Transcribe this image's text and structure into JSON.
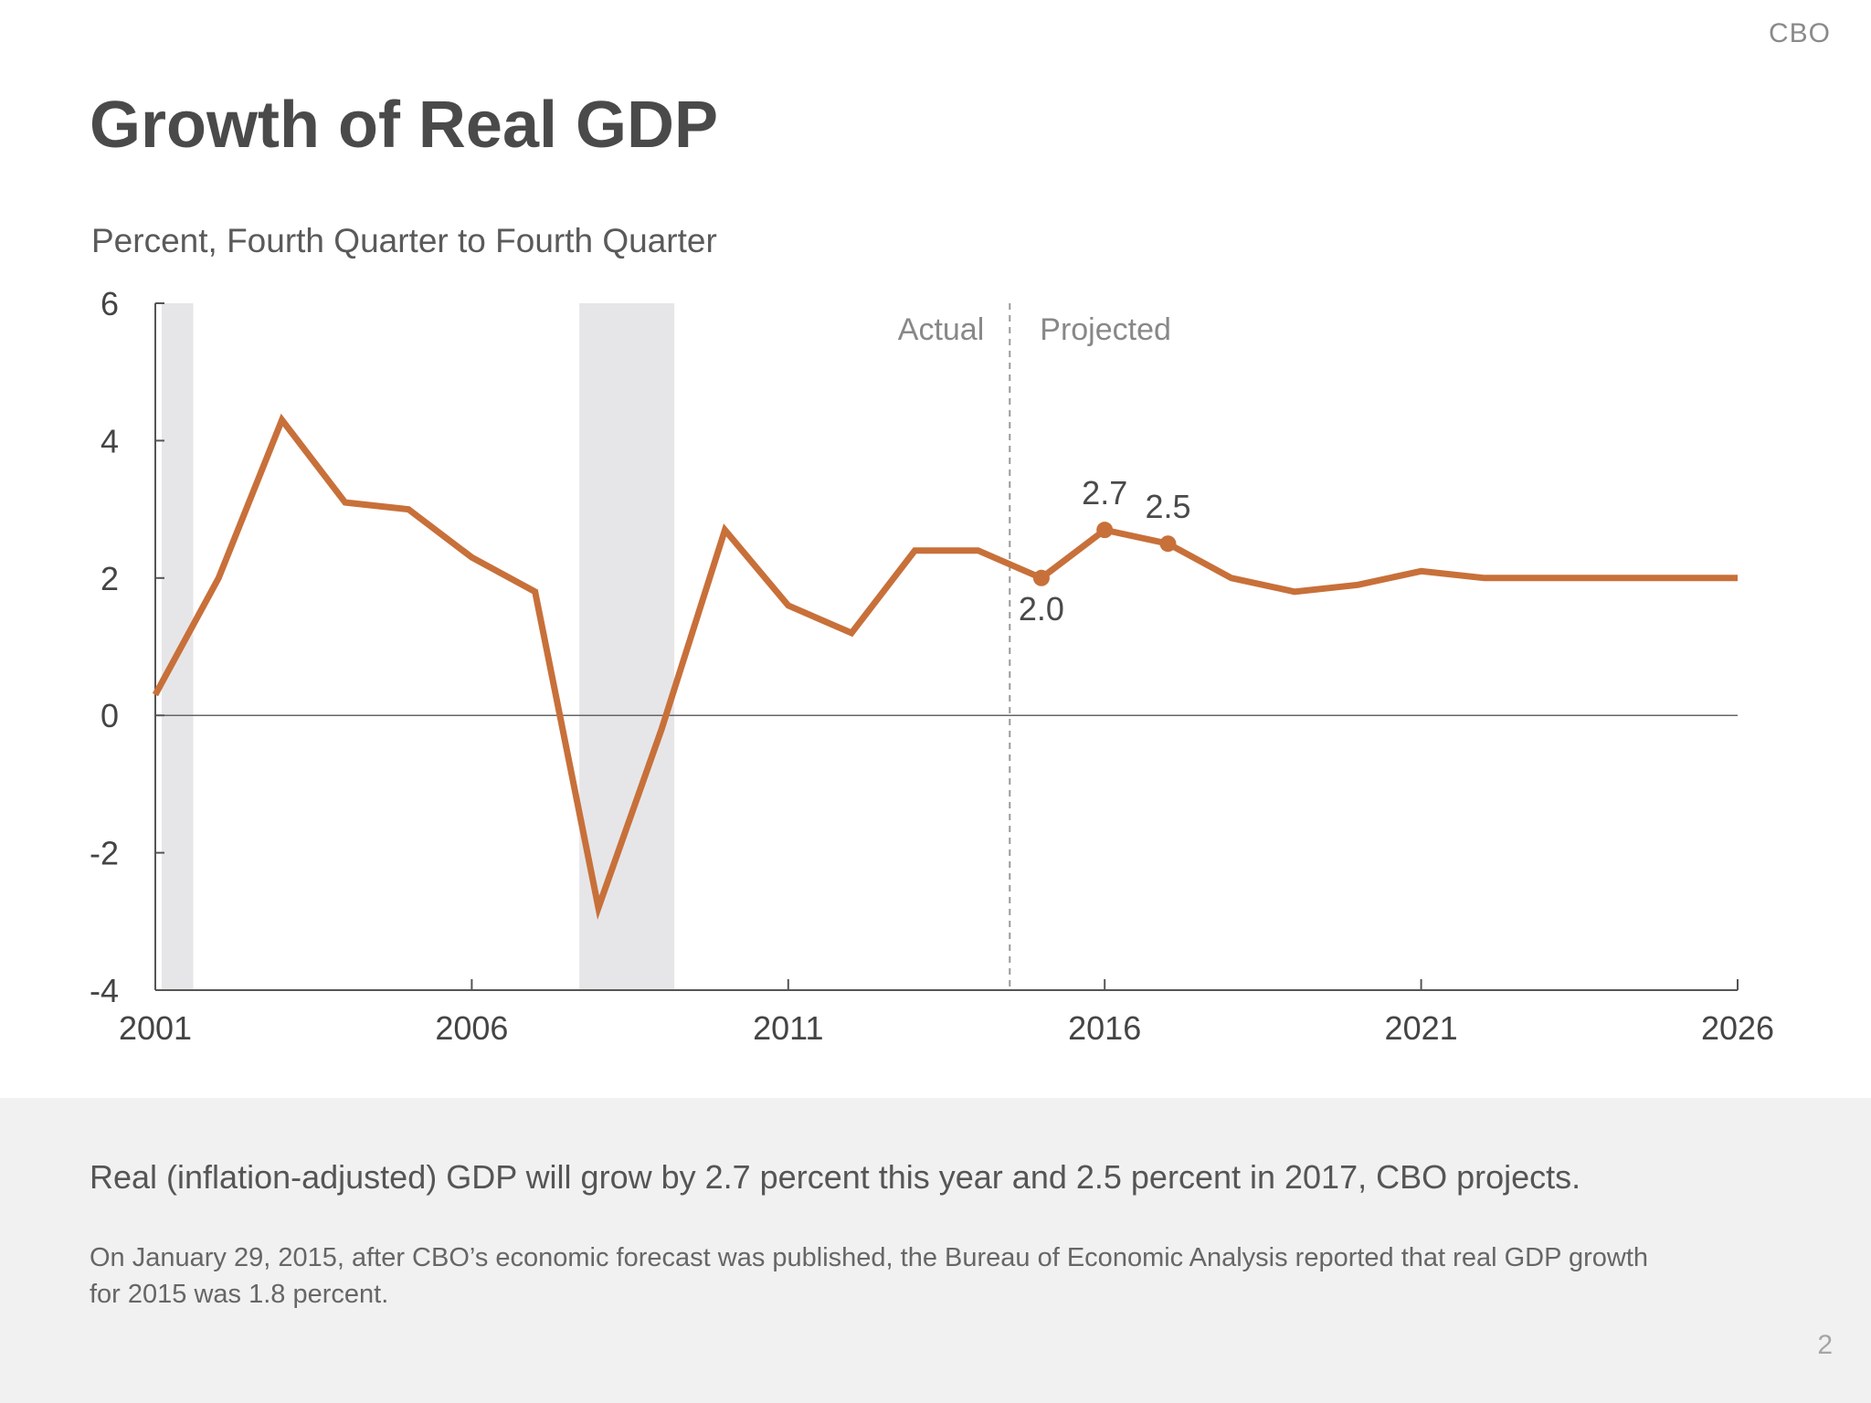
{
  "org": "CBO",
  "title": "Growth of Real GDP",
  "subtitle": "Percent, Fourth Quarter to Fourth Quarter",
  "footer": {
    "lead": "Real (inflation-adjusted) GDP will grow by 2.7 percent this year and 2.5 percent in 2017, CBO projects.",
    "note": "On January 29, 2015, after CBO’s economic forecast was published, the Bureau of Economic Analysis reported that real GDP growth for 2015 was 1.8 percent."
  },
  "page_number": "2",
  "chart_data": {
    "type": "line",
    "title": "Growth of Real GDP",
    "ylabel": "Percent, Fourth Quarter to Fourth Quarter",
    "xlabel": "",
    "xlim": [
      2001,
      2026
    ],
    "ylim": [
      -4,
      6
    ],
    "x_ticks": [
      2001,
      2006,
      2011,
      2016,
      2021,
      2026
    ],
    "y_ticks": [
      -4,
      -2,
      0,
      2,
      4,
      6
    ],
    "line_color": "#c8703a",
    "shade_color": "#e6e6e8",
    "recessions": [
      [
        2001.1,
        2001.6
      ],
      [
        2007.7,
        2009.2
      ]
    ],
    "divider_x": 2014.5,
    "divider_labels": {
      "left": "Actual",
      "right": "Projected"
    },
    "series": [
      {
        "x": [
          2001,
          2002,
          2003,
          2004,
          2005,
          2006,
          2007,
          2008,
          2009,
          2010,
          2011,
          2012,
          2013,
          2014,
          2015,
          2016,
          2017,
          2018,
          2019,
          2020,
          2021,
          2022,
          2023,
          2024,
          2025,
          2026
        ],
        "values": [
          0.3,
          2.0,
          4.3,
          3.1,
          3.0,
          2.3,
          1.8,
          -2.8,
          -0.2,
          2.7,
          1.6,
          1.2,
          2.4,
          2.4,
          2.0,
          2.7,
          2.5,
          2.0,
          1.8,
          1.9,
          2.1,
          2.0,
          2.0,
          2.0,
          2.0,
          2.0
        ]
      }
    ],
    "annotations": [
      {
        "x": 2015,
        "y": 2.0,
        "label": "2.0"
      },
      {
        "x": 2016,
        "y": 2.7,
        "label": "2.7"
      },
      {
        "x": 2017,
        "y": 2.5,
        "label": "2.5"
      }
    ]
  }
}
